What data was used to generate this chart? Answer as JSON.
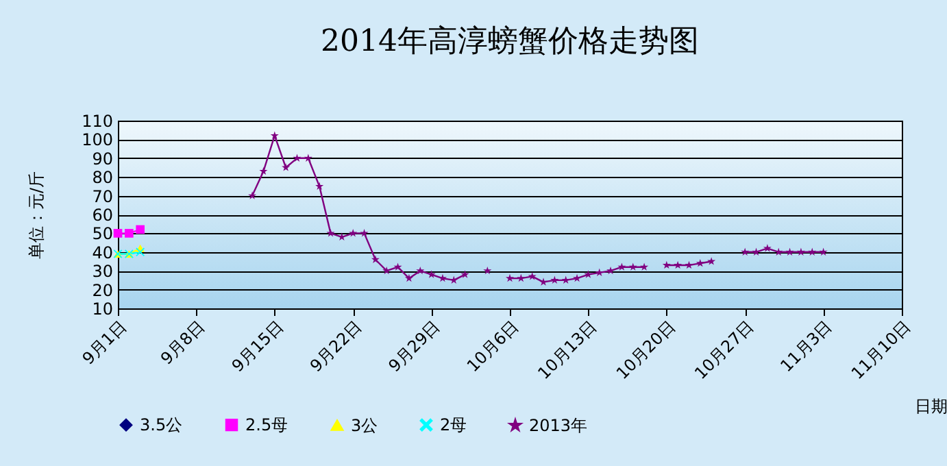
{
  "chart_data": {
    "type": "line",
    "title": "2014年高淳螃蟹价格走势图",
    "xlabel": "日期",
    "ylabel": "单位：元/斤",
    "xlim": [
      "--09-01",
      "--11-10"
    ],
    "xticks": [
      {
        "value": "--09-01",
        "label": "9月1日"
      },
      {
        "value": "--09-08",
        "label": "9月8日"
      },
      {
        "value": "--09-15",
        "label": "9月15日"
      },
      {
        "value": "--09-22",
        "label": "9月22日"
      },
      {
        "value": "--09-29",
        "label": "9月29日"
      },
      {
        "value": "--10-06",
        "label": "10月6日"
      },
      {
        "value": "--10-13",
        "label": "10月13日"
      },
      {
        "value": "--10-20",
        "label": "10月20日"
      },
      {
        "value": "--10-27",
        "label": "10月27日"
      },
      {
        "value": "--11-03",
        "label": "11月3日"
      },
      {
        "value": "--11-10",
        "label": "11月10日"
      }
    ],
    "ylim": [
      10,
      110
    ],
    "yticks": [
      10,
      20,
      30,
      40,
      50,
      60,
      70,
      80,
      90,
      100,
      110
    ],
    "grid": "y",
    "legend": "bottom",
    "line_style": "solid",
    "series": [
      {
        "name": "3.5公",
        "color": "#000080",
        "marker": "diamond"
      },
      {
        "name": "2.5母",
        "color": "#ff00ff",
        "marker": "square",
        "x": [
          "--09-01",
          "--09-02",
          "--09-03"
        ],
        "values": [
          50,
          50,
          52
        ]
      },
      {
        "name": "3公",
        "color": "#ffff00",
        "marker": "triangle",
        "x": [
          "--09-01",
          "--09-02",
          "--09-03"
        ],
        "values": [
          39,
          39,
          42
        ]
      },
      {
        "name": "2母",
        "color": "#00ffff",
        "marker": "cross",
        "x": [
          "--09-01",
          "--09-02",
          "--09-03"
        ],
        "values": [
          39,
          39,
          40
        ]
      },
      {
        "name": "2013年",
        "color": "#800080",
        "marker": "star",
        "x": [
          "--09-13",
          "--09-14",
          "--09-15",
          "--09-16",
          "--09-17",
          "--09-18",
          "--09-19",
          "--09-20",
          "--09-21",
          "--09-22",
          "--09-23",
          "--09-24",
          "--09-25",
          "--09-26",
          "--09-27",
          "--09-28",
          "--09-29",
          "--09-30",
          "--10-01",
          "--10-02",
          "--10-03",
          "--10-04",
          "--10-05",
          "--10-06",
          "--10-07",
          "--10-08",
          "--10-09",
          "--10-10",
          "--10-11",
          "--10-12",
          "--10-13",
          "--10-14",
          "--10-15",
          "--10-16",
          "--10-17",
          "--10-18",
          "--10-19",
          "--10-20",
          "--10-21",
          "--10-22",
          "--10-23",
          "--10-24",
          "--10-25",
          "--10-26",
          "--10-27",
          "--10-28",
          "--10-29",
          "--10-30",
          "--10-31",
          "--11-01",
          "--11-02",
          "--11-03"
        ],
        "values": [
          70,
          83,
          102,
          85,
          90,
          90,
          75,
          50,
          48,
          50,
          50,
          36,
          30,
          32,
          26,
          30,
          28,
          26,
          25,
          28,
          null,
          30,
          null,
          26,
          26,
          27,
          24,
          25,
          25,
          26,
          28,
          29,
          30,
          32,
          32,
          32,
          null,
          33,
          33,
          33,
          34,
          35,
          null,
          null,
          40,
          40,
          42,
          40,
          40,
          40,
          40,
          40
        ]
      }
    ]
  }
}
